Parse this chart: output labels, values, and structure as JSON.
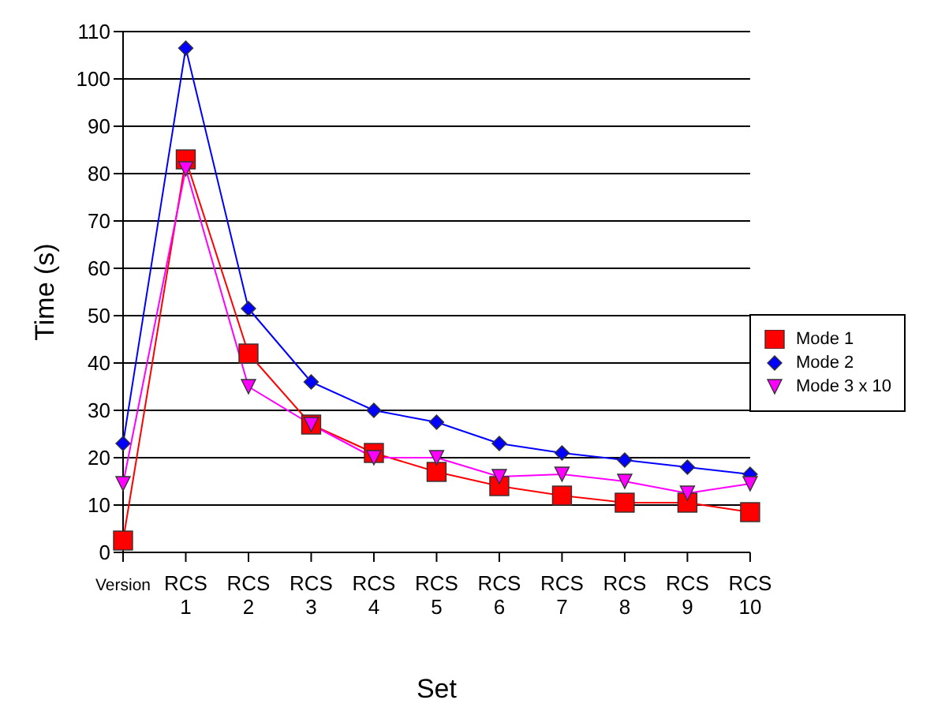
{
  "chart_data": {
    "type": "line",
    "xlabel": "Set",
    "ylabel": "Time (s)",
    "categories": [
      "Version",
      "RCS 1",
      "RCS 2",
      "RCS 3",
      "RCS 4",
      "RCS 5",
      "RCS 6",
      "RCS 7",
      "RCS 8",
      "RCS 9",
      "RCS 10"
    ],
    "series": [
      {
        "name": "Mode 1",
        "color": "#ff0000",
        "marker": "square",
        "values": [
          2.5,
          83,
          42,
          27,
          21,
          17,
          14,
          12,
          10.5,
          10.5,
          8.5
        ]
      },
      {
        "name": "Mode 2",
        "color": "#0000ff",
        "marker": "diamond",
        "values": [
          23,
          106.5,
          51.5,
          36,
          30,
          27.5,
          23,
          21,
          19.5,
          18,
          16.5
        ]
      },
      {
        "name": "Mode 3 x 10",
        "color": "#ff00ff",
        "marker": "triangle",
        "values": [
          14.5,
          81,
          35,
          27,
          20,
          20,
          16,
          16.5,
          15,
          12.5,
          14.5
        ]
      }
    ],
    "ylim": [
      0,
      110
    ],
    "yticks": [
      0,
      10,
      20,
      30,
      40,
      50,
      60,
      70,
      80,
      90,
      100,
      110
    ],
    "grid": "y",
    "legend": "right"
  }
}
